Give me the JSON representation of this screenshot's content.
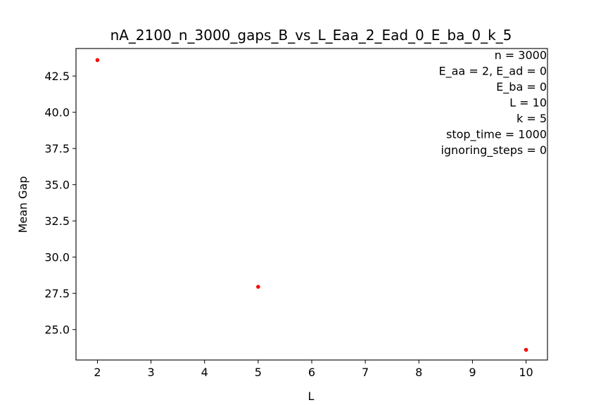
{
  "chart_data": {
    "type": "scatter",
    "title": "nA_2100_n_3000_gaps_B_vs_L_Eaa_2_Ead_0_E_ba_0_k_5",
    "xlabel": "L",
    "ylabel": "Mean Gap",
    "xlim": [
      1.6,
      10.4
    ],
    "ylim": [
      22.9,
      44.4
    ],
    "x_ticks": [
      2,
      3,
      4,
      5,
      6,
      7,
      8,
      9,
      10
    ],
    "y_ticks": [
      25.0,
      27.5,
      30.0,
      32.5,
      35.0,
      37.5,
      40.0,
      42.5
    ],
    "x_tick_labels": [
      "2",
      "3",
      "4",
      "5",
      "6",
      "7",
      "8",
      "9",
      "10"
    ],
    "y_tick_labels": [
      "25.0",
      "27.5",
      "30.0",
      "32.5",
      "35.0",
      "37.5",
      "40.0",
      "42.5"
    ],
    "grid": false,
    "legend": false,
    "series": [
      {
        "color": "#ff0000",
        "x": [
          2,
          5,
          10
        ],
        "y": [
          43.6,
          27.95,
          23.6
        ]
      }
    ],
    "annotation_lines": [
      "n = 3000",
      "E_aa = 2, E_ad = 0",
      "E_ba = 0",
      "L = 10",
      "k = 5",
      "stop_time = 1000",
      "ignoring_steps = 0"
    ]
  }
}
